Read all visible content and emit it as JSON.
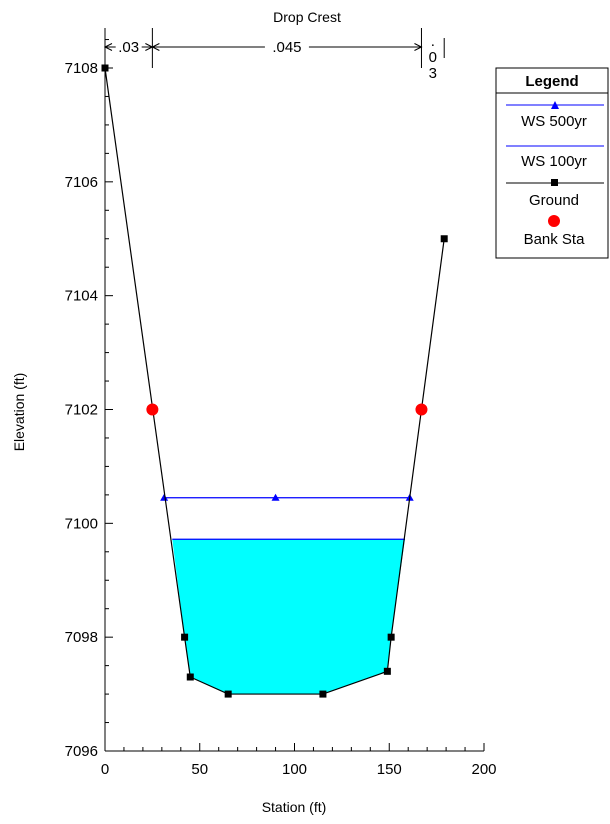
{
  "chart_data": {
    "type": "line",
    "title": "Drop Crest",
    "xlabel": "Station (ft)",
    "ylabel": "Elevation (ft)",
    "xlim": [
      0,
      200
    ],
    "ylim": [
      7096,
      7108.5
    ],
    "x_ticks": [
      0,
      50,
      100,
      150,
      200
    ],
    "y_ticks": [
      7096,
      7098,
      7100,
      7102,
      7104,
      7106,
      7108
    ],
    "grid": false,
    "legend": {
      "title": "Legend",
      "placement": "right",
      "entries": [
        "WS 500yr",
        "WS 100yr",
        "Ground",
        "Bank Sta"
      ]
    },
    "series": [
      {
        "name": "Ground",
        "color": "#000000",
        "marker": "square",
        "points": [
          [
            0,
            7108
          ],
          [
            42,
            7098
          ],
          [
            45,
            7097.3
          ],
          [
            65,
            7097
          ],
          [
            115,
            7097
          ],
          [
            149,
            7097.4
          ],
          [
            151,
            7098
          ],
          [
            179,
            7105
          ]
        ]
      },
      {
        "name": "WS 500yr",
        "color": "#0000ff",
        "marker": "triangle",
        "elevation": 7100.45,
        "x_range": [
          31.2,
          160.8
        ],
        "marker_x": [
          31.2,
          90,
          160.8
        ]
      },
      {
        "name": "WS 100yr",
        "color": "#0000ff",
        "fill": "#00ffff",
        "elevation": 7099.72,
        "x_range": [
          35.5,
          158.3
        ]
      },
      {
        "name": "Bank Sta",
        "color": "#ff0000",
        "marker": "circle",
        "points": [
          [
            25,
            7102
          ],
          [
            167,
            7102
          ]
        ]
      }
    ],
    "mannings_n": [
      {
        "value": ".03",
        "from": 0,
        "to": 25
      },
      {
        "value": ".045",
        "from": 25,
        "to": 167
      },
      {
        "value": ".03",
        "from": 167,
        "to": 179
      }
    ]
  }
}
